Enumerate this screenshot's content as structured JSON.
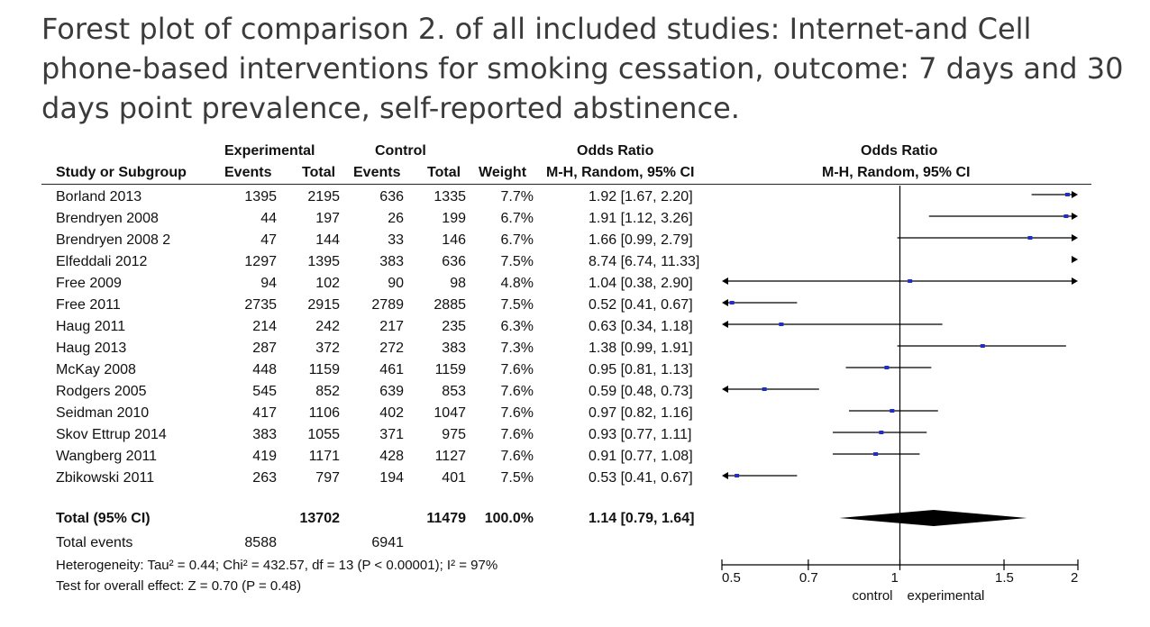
{
  "caption_lines": [
    "Forest plot of comparison 2. of all included studies: Internet-and Cell",
    "phone-based interventions for smoking cessation, outcome: 7 days and 30",
    "days point prevalence, self-reported abstinence."
  ],
  "headers": {
    "experimental": "Experimental",
    "control": "Control",
    "odds_ratio": "Odds Ratio",
    "method": "M-H, Random, 95% CI",
    "plot_odds_ratio": "Odds Ratio",
    "plot_method": "M-H, Random, 95% CI",
    "study": "Study or Subgroup",
    "events": "Events",
    "total": "Total",
    "events2": "Events",
    "total2": "Total",
    "weight": "Weight"
  },
  "totals": {
    "label": "Total (95% CI)",
    "exp_total": "13702",
    "ctl_total": "11479",
    "weight": "100.0%",
    "ci_text": "1.14 [0.79, 1.64]",
    "events_label": "Total events",
    "exp_events": "8588",
    "ctl_events": "6941",
    "heterogeneity": "Heterogeneity: Tau² = 0.44; Chi² = 432.57, df = 13 (P < 0.00001); I² = 97%",
    "overall": "Test for overall effect: Z = 0.70 (P = 0.48)"
  },
  "chart_data": {
    "type": "forest",
    "x_scale": "log",
    "xlim": [
      0.5,
      2
    ],
    "ticks": [
      0.5,
      0.7,
      1,
      1.5,
      2
    ],
    "tick_labels": [
      "0.5",
      "0.7",
      "1",
      "1.5",
      "2"
    ],
    "axis_left_label": "control",
    "axis_right_label": "experimental",
    "studies": [
      {
        "name": "Borland 2013",
        "exp_events": "1395",
        "exp_total": "2195",
        "ctl_events": "636",
        "ctl_total": "1335",
        "weight": "7.7%",
        "or_text": "1.92 [1.67, 2.20]",
        "or": 1.92,
        "lo": 1.67,
        "hi": 2.2
      },
      {
        "name": "Brendryen 2008",
        "exp_events": "44",
        "exp_total": "197",
        "ctl_events": "26",
        "ctl_total": "199",
        "weight": "6.7%",
        "or_text": "1.91 [1.12, 3.26]",
        "or": 1.91,
        "lo": 1.12,
        "hi": 3.26
      },
      {
        "name": "Brendryen 2008 2",
        "exp_events": "47",
        "exp_total": "144",
        "ctl_events": "33",
        "ctl_total": "146",
        "weight": "6.7%",
        "or_text": "1.66 [0.99, 2.79]",
        "or": 1.66,
        "lo": 0.99,
        "hi": 2.79
      },
      {
        "name": "Elfeddali 2012",
        "exp_events": "1297",
        "exp_total": "1395",
        "ctl_events": "383",
        "ctl_total": "636",
        "weight": "7.5%",
        "or_text": "8.74 [6.74, 11.33]",
        "or": 8.74,
        "lo": 6.74,
        "hi": 11.33
      },
      {
        "name": "Free 2009",
        "exp_events": "94",
        "exp_total": "102",
        "ctl_events": "90",
        "ctl_total": "98",
        "weight": "4.8%",
        "or_text": "1.04 [0.38, 2.90]",
        "or": 1.04,
        "lo": 0.38,
        "hi": 2.9
      },
      {
        "name": "Free 2011",
        "exp_events": "2735",
        "exp_total": "2915",
        "ctl_events": "2789",
        "ctl_total": "2885",
        "weight": "7.5%",
        "or_text": "0.52 [0.41, 0.67]",
        "or": 0.52,
        "lo": 0.41,
        "hi": 0.67
      },
      {
        "name": "Haug 2011",
        "exp_events": "214",
        "exp_total": "242",
        "ctl_events": "217",
        "ctl_total": "235",
        "weight": "6.3%",
        "or_text": "0.63 [0.34, 1.18]",
        "or": 0.63,
        "lo": 0.34,
        "hi": 1.18
      },
      {
        "name": "Haug 2013",
        "exp_events": "287",
        "exp_total": "372",
        "ctl_events": "272",
        "ctl_total": "383",
        "weight": "7.3%",
        "or_text": "1.38 [0.99, 1.91]",
        "or": 1.38,
        "lo": 0.99,
        "hi": 1.91
      },
      {
        "name": "McKay 2008",
        "exp_events": "448",
        "exp_total": "1159",
        "ctl_events": "461",
        "ctl_total": "1159",
        "weight": "7.6%",
        "or_text": "0.95 [0.81, 1.13]",
        "or": 0.95,
        "lo": 0.81,
        "hi": 1.13
      },
      {
        "name": "Rodgers 2005",
        "exp_events": "545",
        "exp_total": "852",
        "ctl_events": "639",
        "ctl_total": "853",
        "weight": "7.6%",
        "or_text": "0.59 [0.48, 0.73]",
        "or": 0.59,
        "lo": 0.48,
        "hi": 0.73
      },
      {
        "name": "Seidman 2010",
        "exp_events": "417",
        "exp_total": "1106",
        "ctl_events": "402",
        "ctl_total": "1047",
        "weight": "7.6%",
        "or_text": "0.97 [0.82, 1.16]",
        "or": 0.97,
        "lo": 0.82,
        "hi": 1.16
      },
      {
        "name": "Skov Ettrup 2014",
        "exp_events": "383",
        "exp_total": "1055",
        "ctl_events": "371",
        "ctl_total": "975",
        "weight": "7.6%",
        "or_text": "0.93 [0.77, 1.11]",
        "or": 0.93,
        "lo": 0.77,
        "hi": 1.11
      },
      {
        "name": "Wangberg 2011",
        "exp_events": "419",
        "exp_total": "1171",
        "ctl_events": "428",
        "ctl_total": "1127",
        "weight": "7.6%",
        "or_text": "0.91 [0.77, 1.08]",
        "or": 0.91,
        "lo": 0.77,
        "hi": 1.08
      },
      {
        "name": "Zbikowski 2011",
        "exp_events": "263",
        "exp_total": "797",
        "ctl_events": "194",
        "ctl_total": "401",
        "weight": "7.5%",
        "or_text": "0.53 [0.41, 0.67]",
        "or": 0.53,
        "lo": 0.41,
        "hi": 0.67
      }
    ],
    "pooled": {
      "or": 1.14,
      "lo": 0.79,
      "hi": 1.64
    },
    "colors": {
      "point": "#1f2fbf",
      "line": "#000000",
      "diamond": "#000000"
    }
  }
}
